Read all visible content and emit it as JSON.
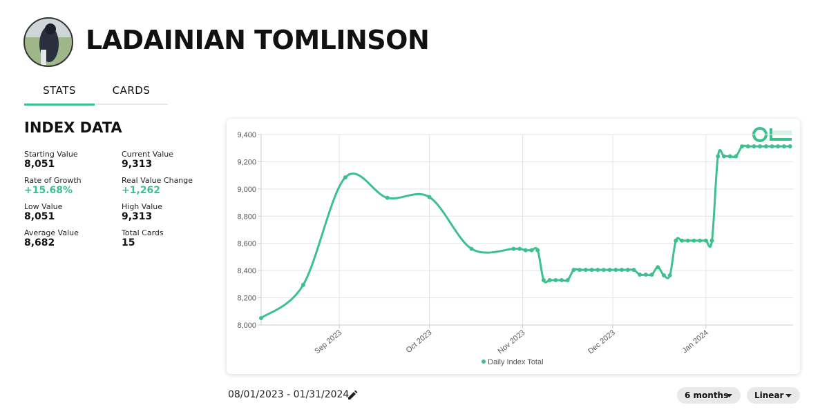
{
  "header": {
    "name": "LADAINIAN TOMLINSON"
  },
  "tabs": [
    "STATS",
    "CARDS"
  ],
  "index_data": {
    "title": "INDEX DATA",
    "stats": [
      {
        "label": "Starting Value",
        "value": "8,051"
      },
      {
        "label": "Current Value",
        "value": "9,313"
      },
      {
        "label": "Rate of Growth",
        "value": "+15.68%"
      },
      {
        "label": "Real Value Change",
        "value": "+1,262"
      },
      {
        "label": "Low Value",
        "value": "8,051"
      },
      {
        "label": "High Value",
        "value": "9,313"
      },
      {
        "label": "Average Value",
        "value": "8,682"
      },
      {
        "label": "Total Cards",
        "value": "15"
      }
    ]
  },
  "chart_data": {
    "type": "line",
    "x": [
      "2023-08-06",
      "2023-08-20",
      "2023-09-03",
      "2023-09-17",
      "2023-10-01",
      "2023-10-15",
      "2023-10-29",
      "2023-10-31",
      "2023-11-02",
      "2023-11-04",
      "2023-11-06",
      "2023-11-08",
      "2023-11-10",
      "2023-11-12",
      "2023-11-14",
      "2023-11-16",
      "2023-11-18",
      "2023-11-20",
      "2023-11-22",
      "2023-11-24",
      "2023-11-26",
      "2023-11-28",
      "2023-11-30",
      "2023-12-02",
      "2023-12-04",
      "2023-12-06",
      "2023-12-08",
      "2023-12-10",
      "2023-12-12",
      "2023-12-14",
      "2023-12-16",
      "2023-12-18",
      "2023-12-20",
      "2023-12-22",
      "2023-12-24",
      "2023-12-26",
      "2023-12-28",
      "2023-12-30",
      "2024-01-01",
      "2024-01-03",
      "2024-01-05",
      "2024-01-07",
      "2024-01-09",
      "2024-01-11",
      "2024-01-13",
      "2024-01-15",
      "2024-01-17",
      "2024-01-19",
      "2024-01-21",
      "2024-01-23",
      "2024-01-25",
      "2024-01-27",
      "2024-01-29"
    ],
    "series": [
      {
        "name": "Daily Index Total",
        "color": "#3dbf8e",
        "values": [
          8051,
          8295,
          9085,
          8935,
          8940,
          8560,
          8560,
          8560,
          8550,
          8550,
          8550,
          8330,
          8330,
          8330,
          8330,
          8330,
          8405,
          8405,
          8405,
          8405,
          8405,
          8405,
          8405,
          8405,
          8405,
          8405,
          8405,
          8370,
          8370,
          8370,
          8425,
          8365,
          8365,
          8620,
          8620,
          8620,
          8620,
          8620,
          8620,
          8620,
          9240,
          9240,
          9240,
          9240,
          9313,
          9313,
          9313,
          9313,
          9313,
          9313,
          9313,
          9313,
          9313
        ]
      }
    ],
    "xlim": [
      "2023-08-06",
      "2024-01-30"
    ],
    "xticks": [
      {
        "value": "2023-09-01",
        "label": "Sep 2023"
      },
      {
        "value": "2023-10-01",
        "label": "Oct 2023"
      },
      {
        "value": "2023-11-01",
        "label": "Nov 2023"
      },
      {
        "value": "2023-12-01",
        "label": "Dec 2023"
      },
      {
        "value": "2024-01-01",
        "label": "Jan 2024"
      }
    ],
    "ylim": [
      8000,
      9400
    ],
    "yticks": [
      {
        "value": 8000,
        "label": "8,000"
      },
      {
        "value": 8200,
        "label": "8,200"
      },
      {
        "value": 8400,
        "label": "8,400"
      },
      {
        "value": 8600,
        "label": "8,600"
      },
      {
        "value": 8800,
        "label": "8,800"
      },
      {
        "value": 9000,
        "label": "9,000"
      },
      {
        "value": 9200,
        "label": "9,200"
      },
      {
        "value": 9400,
        "label": "9,400"
      }
    ],
    "grid": true,
    "legend": "bottom"
  },
  "date_range": "08/01/2023 - 01/31/2024",
  "controls": [
    "6 months",
    "Linear"
  ]
}
